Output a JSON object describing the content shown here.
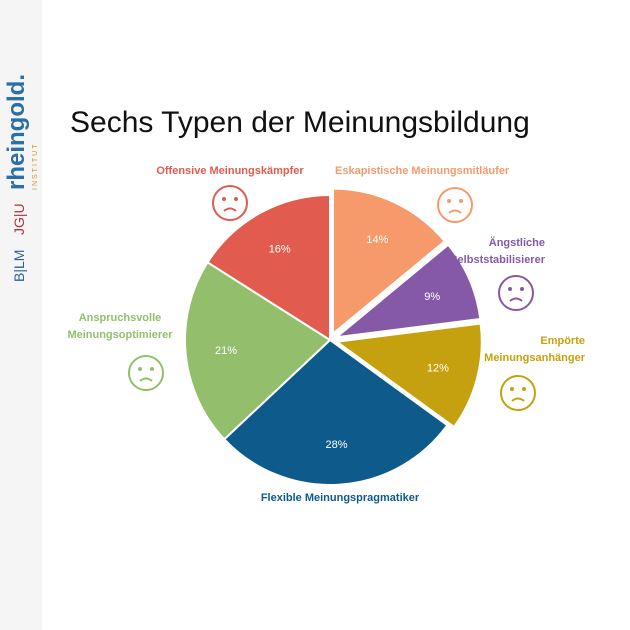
{
  "chart_data": {
    "type": "pie",
    "title": "Sechs Typen der Meinungsbildung",
    "categories": [
      "Eskapistische Meinungsmitläufer",
      "Ängstliche Selbststabilisierer",
      "Empörte Meinungsanhänger",
      "Flexible Meinungspragmatiker",
      "Anspruchsvolle Meinungsoptimierer",
      "Offensive Meinungskämpfer"
    ],
    "values": [
      14,
      9,
      12,
      28,
      21,
      16
    ],
    "value_labels": [
      "14%",
      "9%",
      "12%",
      "28%",
      "21%",
      "16%"
    ],
    "colors": [
      "#f79a6b",
      "#8658a8",
      "#c6a10f",
      "#0e5a8a",
      "#93bf6d",
      "#e15b4f"
    ],
    "exploded": [
      true,
      true,
      true,
      false,
      false,
      false
    ]
  },
  "logo": {
    "name": "rheingold.",
    "subtitle": "INSTITUT",
    "partner1": "JG|U",
    "partner2": "B|LM"
  }
}
